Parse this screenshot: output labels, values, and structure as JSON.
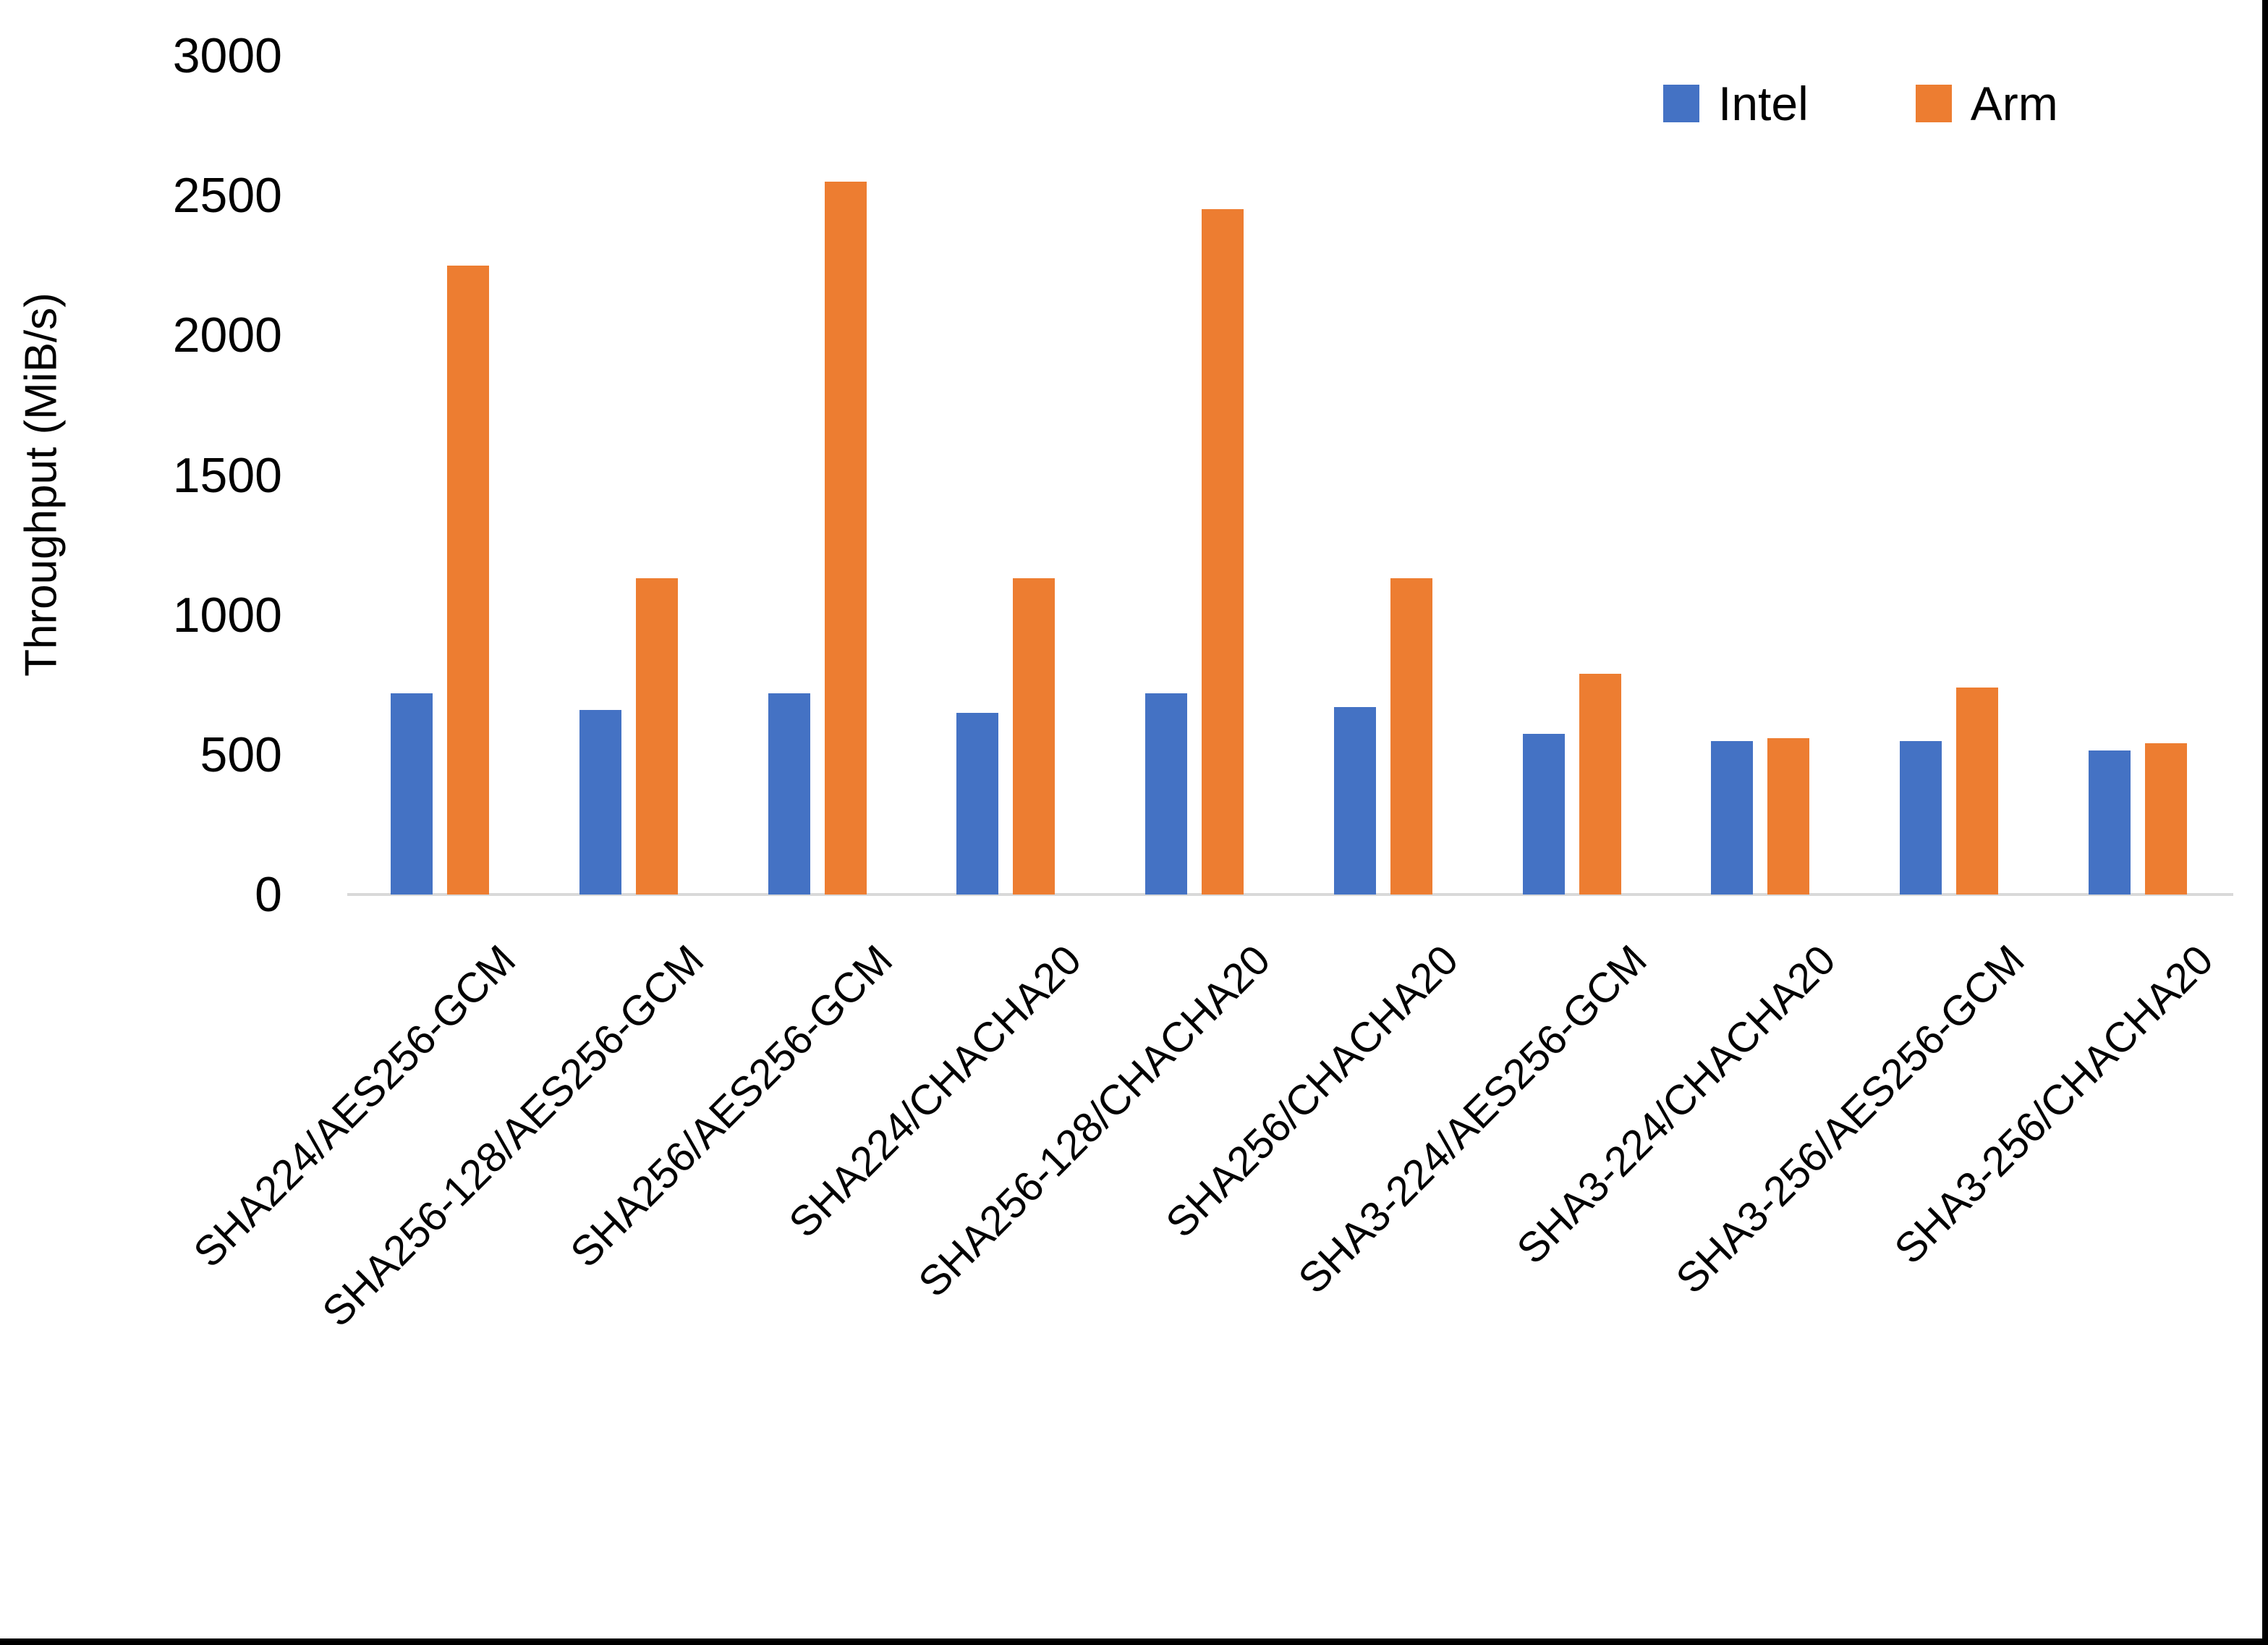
{
  "chart_data": {
    "type": "bar",
    "title": "",
    "ylabel": "Throughput (MiB/s)",
    "xlabel": "",
    "ylim": [
      0,
      3000
    ],
    "yticks": [
      0,
      500,
      1000,
      1500,
      2000,
      2500,
      3000
    ],
    "grid": false,
    "legend_position": "top-right",
    "categories": [
      "SHA224/AES256-GCM",
      "SHA256-128/AES256-GCM",
      "SHA256/AES256-GCM",
      "SHA224/CHACHA20",
      "SHA256-128/CHACHA20",
      "SHA256/CHACHA20",
      "SHA3-224/AES256-GCM",
      "SHA3-224/CHACHA20",
      "SHA3-256/AES256-GCM",
      "SHA3-256/CHACHA20"
    ],
    "series": [
      {
        "name": "Intel",
        "color": "#4472C4",
        "values": [
          720,
          660,
          720,
          650,
          720,
          670,
          575,
          550,
          550,
          515
        ]
      },
      {
        "name": "Arm",
        "color": "#ED7D31",
        "values": [
          2250,
          1130,
          2550,
          1130,
          2450,
          1130,
          790,
          560,
          740,
          540
        ]
      }
    ],
    "axis_line_color": "#D9D9D9",
    "text_color": "#000000",
    "background": "#FFFFFF",
    "frame_color": "#000000"
  }
}
